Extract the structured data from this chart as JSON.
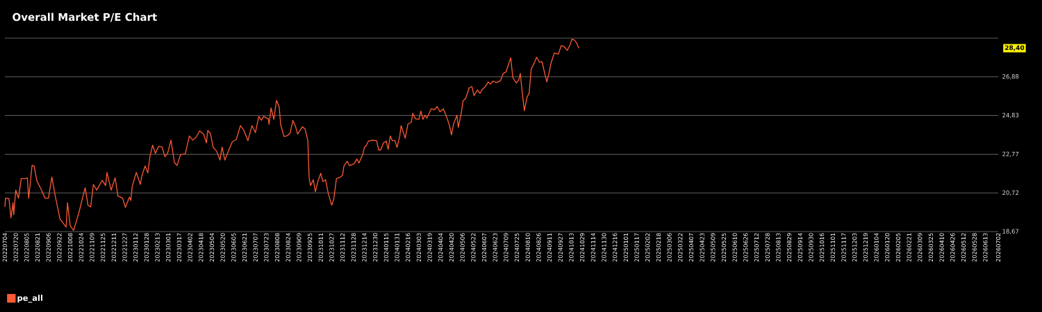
{
  "chart_data": {
    "type": "line",
    "title": "Overall Market P/E Chart",
    "x": [
      "2022-07-04",
      "2022-07-05",
      "2022-07-10",
      "2022-07-13",
      "2022-07-16",
      "2022-07-17",
      "2022-07-20",
      "2022-07-24",
      "2022-07-28",
      "2022-08-03",
      "2022-08-06",
      "2022-08-08",
      "2022-08-13",
      "2022-08-16",
      "2022-08-20",
      "2022-08-26",
      "2022-09-01",
      "2022-09-06",
      "2022-09-11",
      "2022-09-16",
      "2022-09-23",
      "2022-09-28",
      "2022-10-02",
      "2022-10-04",
      "2022-10-08",
      "2022-10-13",
      "2022-10-21",
      "2022-10-26",
      "2022-10-30",
      "2022-11-03",
      "2022-11-07",
      "2022-11-11",
      "2022-11-16",
      "2022-11-24",
      "2022-11-29",
      "2022-12-01",
      "2022-12-07",
      "2022-12-13",
      "2022-12-17",
      "2022-12-24",
      "2022-12-28",
      "2023-01-03",
      "2023-01-05",
      "2023-01-07",
      "2023-01-13",
      "2023-01-19",
      "2023-01-21",
      "2023-01-26",
      "2023-01-30",
      "2023-02-02",
      "2023-02-06",
      "2023-02-10",
      "2023-02-15",
      "2023-02-20",
      "2023-02-24",
      "2023-02-28",
      "2023-03-05",
      "2023-03-10",
      "2023-03-14",
      "2023-03-19",
      "2023-03-26",
      "2023-04-01",
      "2023-04-06",
      "2023-04-11",
      "2023-04-16",
      "2023-04-22",
      "2023-04-26",
      "2023-04-28",
      "2023-05-02",
      "2023-05-06",
      "2023-05-11",
      "2023-05-16",
      "2023-05-19",
      "2023-05-23",
      "2023-05-29",
      "2023-06-03",
      "2023-06-09",
      "2023-06-15",
      "2023-06-20",
      "2023-06-26",
      "2023-07-02",
      "2023-07-07",
      "2023-07-12",
      "2023-07-16",
      "2023-07-19",
      "2023-07-26",
      "2023-07-27",
      "2023-07-30",
      "2023-08-03",
      "2023-08-07",
      "2023-08-11",
      "2023-08-13",
      "2023-08-18",
      "2023-08-23",
      "2023-08-27",
      "2023-08-31",
      "2023-09-04",
      "2023-09-07",
      "2023-09-14",
      "2023-09-18",
      "2023-09-22",
      "2023-09-24",
      "2023-09-26",
      "2023-09-30",
      "2023-10-03",
      "2023-10-07",
      "2023-10-11",
      "2023-10-14",
      "2023-10-18",
      "2023-10-22",
      "2023-10-27",
      "2023-10-30",
      "2023-11-03",
      "2023-11-08",
      "2023-11-12",
      "2023-11-14",
      "2023-11-19",
      "2023-11-22",
      "2023-11-29",
      "2023-12-03",
      "2023-12-06",
      "2023-12-12",
      "2023-12-14",
      "2023-12-17",
      "2023-12-20",
      "2023-12-26",
      "2024-01-01",
      "2024-01-04",
      "2024-01-07",
      "2024-01-11",
      "2024-01-15",
      "2024-01-18",
      "2024-01-21",
      "2024-01-24",
      "2024-01-28",
      "2024-01-31",
      "2024-02-04",
      "2024-02-06",
      "2024-02-12",
      "2024-02-16",
      "2024-02-21",
      "2024-02-23",
      "2024-02-27",
      "2024-03-03",
      "2024-03-06",
      "2024-03-09",
      "2024-03-12",
      "2024-03-15",
      "2024-03-21",
      "2024-03-26",
      "2024-03-30",
      "2024-04-03",
      "2024-04-08",
      "2024-04-13",
      "2024-04-17",
      "2024-04-20",
      "2024-04-23",
      "2024-04-28",
      "2024-04-30",
      "2024-05-04",
      "2024-05-07",
      "2024-05-11",
      "2024-05-16",
      "2024-05-20",
      "2024-05-23",
      "2024-05-28",
      "2024-06-01",
      "2024-06-04",
      "2024-06-08",
      "2024-06-13",
      "2024-06-16",
      "2024-06-20",
      "2024-06-25",
      "2024-07-01",
      "2024-07-05",
      "2024-07-09",
      "2024-07-12",
      "2024-07-16",
      "2024-07-19",
      "2024-07-24",
      "2024-07-28",
      "2024-07-30",
      "2024-08-02",
      "2024-08-05",
      "2024-08-09",
      "2024-08-12",
      "2024-08-15",
      "2024-08-20",
      "2024-08-23",
      "2024-08-27",
      "2024-08-31",
      "2024-09-04",
      "2024-09-07",
      "2024-09-10",
      "2024-09-13",
      "2024-09-18",
      "2024-09-24",
      "2024-09-28",
      "2024-10-02",
      "2024-10-07",
      "2024-10-11",
      "2024-10-14",
      "2024-10-18",
      "2024-10-21",
      "2024-10-24"
    ],
    "series": [
      {
        "name": "pe_all",
        "color": "#ff5a36",
        "values": [
          19.98,
          20.44,
          20.42,
          19.4,
          20.2,
          19.56,
          20.87,
          20.44,
          21.48,
          21.48,
          21.52,
          20.44,
          22.19,
          22.15,
          21.36,
          20.93,
          20.44,
          20.44,
          21.56,
          20.56,
          19.34,
          19.1,
          18.91,
          20.2,
          18.98,
          18.73,
          19.71,
          20.44,
          20.99,
          20.07,
          19.98,
          21.17,
          20.87,
          21.39,
          21.11,
          21.81,
          20.87,
          21.52,
          20.56,
          20.44,
          19.95,
          20.5,
          20.32,
          21.05,
          21.81,
          21.17,
          21.6,
          22.15,
          21.78,
          22.64,
          23.25,
          22.82,
          23.19,
          23.15,
          22.64,
          22.82,
          23.52,
          22.33,
          22.17,
          22.76,
          22.79,
          23.74,
          23.52,
          23.68,
          24.01,
          23.84,
          23.37,
          24.04,
          23.86,
          23.13,
          22.94,
          22.46,
          23.15,
          22.46,
          23.0,
          23.43,
          23.56,
          24.29,
          24.04,
          23.49,
          24.29,
          23.92,
          24.78,
          24.57,
          24.78,
          24.65,
          24.35,
          25.23,
          24.62,
          25.63,
          25.27,
          24.35,
          23.71,
          23.76,
          23.89,
          24.57,
          24.23,
          23.84,
          24.23,
          24.11,
          23.49,
          21.48,
          21.11,
          21.42,
          20.78,
          21.36,
          21.76,
          21.32,
          21.42,
          20.69,
          20.07,
          20.38,
          21.48,
          21.54,
          21.66,
          22.15,
          22.4,
          22.17,
          22.27,
          22.52,
          22.3,
          22.79,
          23.13,
          23.25,
          23.47,
          23.52,
          23.49,
          23.0,
          23.0,
          23.37,
          23.47,
          23.03,
          23.74,
          23.49,
          23.49,
          23.13,
          23.74,
          24.29,
          23.62,
          24.37,
          24.47,
          24.94,
          24.65,
          24.62,
          25.06,
          24.62,
          24.84,
          24.69,
          25.18,
          25.14,
          25.3,
          25.02,
          25.18,
          24.74,
          24.29,
          23.8,
          24.37,
          24.84,
          24.2,
          24.9,
          25.6,
          25.75,
          26.3,
          26.36,
          25.88,
          26.18,
          26.0,
          26.21,
          26.33,
          26.61,
          26.49,
          26.65,
          26.57,
          26.67,
          27.06,
          27.13,
          27.46,
          27.89,
          26.85,
          26.55,
          26.73,
          27.06,
          26.0,
          25.08,
          25.81,
          26.0,
          27.28,
          27.65,
          27.92,
          27.65,
          27.68,
          27.04,
          26.61,
          27.04,
          27.59,
          28.14,
          28.08,
          28.53,
          28.49,
          28.28,
          28.56,
          28.88,
          28.81,
          28.65,
          28.4
        ]
      }
    ],
    "xlim": [
      "2022-07-04",
      "2026-07-02"
    ],
    "xticks": [
      {
        "value": "2022-07-04",
        "label": "20220704"
      },
      {
        "value": "2022-07-20",
        "label": "20220720"
      },
      {
        "value": "2022-08-05",
        "label": "20220805"
      },
      {
        "value": "2022-08-21",
        "label": "20220821"
      },
      {
        "value": "2022-09-06",
        "label": "20220906"
      },
      {
        "value": "2022-09-22",
        "label": "20220922"
      },
      {
        "value": "2022-10-08",
        "label": "20221008"
      },
      {
        "value": "2022-10-24",
        "label": "20221024"
      },
      {
        "value": "2022-11-09",
        "label": "20221109"
      },
      {
        "value": "2022-11-25",
        "label": "20221125"
      },
      {
        "value": "2022-12-11",
        "label": "20221211"
      },
      {
        "value": "2022-12-27",
        "label": "20221227"
      },
      {
        "value": "2023-01-12",
        "label": "20230112"
      },
      {
        "value": "2023-01-28",
        "label": "20230128"
      },
      {
        "value": "2023-02-13",
        "label": "20230213"
      },
      {
        "value": "2023-03-01",
        "label": "20230301"
      },
      {
        "value": "2023-03-17",
        "label": "20230317"
      },
      {
        "value": "2023-04-02",
        "label": "20230402"
      },
      {
        "value": "2023-04-18",
        "label": "20230418"
      },
      {
        "value": "2023-05-04",
        "label": "20230504"
      },
      {
        "value": "2023-05-20",
        "label": "20230520"
      },
      {
        "value": "2023-06-05",
        "label": "20230605"
      },
      {
        "value": "2023-06-21",
        "label": "20230621"
      },
      {
        "value": "2023-07-07",
        "label": "20230707"
      },
      {
        "value": "2023-07-23",
        "label": "20230723"
      },
      {
        "value": "2023-08-08",
        "label": "20230808"
      },
      {
        "value": "2023-08-24",
        "label": "20230824"
      },
      {
        "value": "2023-09-09",
        "label": "20230909"
      },
      {
        "value": "2023-09-25",
        "label": "20230925"
      },
      {
        "value": "2023-10-11",
        "label": "20231011"
      },
      {
        "value": "2023-10-27",
        "label": "20231027"
      },
      {
        "value": "2023-11-12",
        "label": "20231112"
      },
      {
        "value": "2023-11-28",
        "label": "20231128"
      },
      {
        "value": "2023-12-14",
        "label": "20231214"
      },
      {
        "value": "2023-12-30",
        "label": "20231230"
      },
      {
        "value": "2024-01-15",
        "label": "20240115"
      },
      {
        "value": "2024-01-31",
        "label": "20240131"
      },
      {
        "value": "2024-02-16",
        "label": "20240216"
      },
      {
        "value": "2024-03-03",
        "label": "20240303"
      },
      {
        "value": "2024-03-19",
        "label": "20240319"
      },
      {
        "value": "2024-04-04",
        "label": "20240404"
      },
      {
        "value": "2024-04-20",
        "label": "20240420"
      },
      {
        "value": "2024-05-06",
        "label": "20240506"
      },
      {
        "value": "2024-05-22",
        "label": "20240522"
      },
      {
        "value": "2024-06-07",
        "label": "20240607"
      },
      {
        "value": "2024-06-23",
        "label": "20240623"
      },
      {
        "value": "2024-07-09",
        "label": "20240709"
      },
      {
        "value": "2024-07-25",
        "label": "20240725"
      },
      {
        "value": "2024-08-10",
        "label": "20240810"
      },
      {
        "value": "2024-08-26",
        "label": "20240826"
      },
      {
        "value": "2024-09-11",
        "label": "20240911"
      },
      {
        "value": "2024-09-27",
        "label": "20240927"
      },
      {
        "value": "2024-10-13",
        "label": "20241013"
      },
      {
        "value": "2024-10-29",
        "label": "20241029"
      },
      {
        "value": "2024-11-14",
        "label": "20241114"
      },
      {
        "value": "2024-11-30",
        "label": "20241130"
      },
      {
        "value": "2024-12-16",
        "label": "20241216"
      },
      {
        "value": "2025-01-01",
        "label": "20250101"
      },
      {
        "value": "2025-01-17",
        "label": "20250117"
      },
      {
        "value": "2025-02-02",
        "label": "20250202"
      },
      {
        "value": "2025-02-18",
        "label": "20250218"
      },
      {
        "value": "2025-03-06",
        "label": "20250306"
      },
      {
        "value": "2025-03-22",
        "label": "20250322"
      },
      {
        "value": "2025-04-07",
        "label": "20250407"
      },
      {
        "value": "2025-04-23",
        "label": "20250423"
      },
      {
        "value": "2025-05-09",
        "label": "20250509"
      },
      {
        "value": "2025-05-25",
        "label": "20250525"
      },
      {
        "value": "2025-06-10",
        "label": "20250610"
      },
      {
        "value": "2025-06-26",
        "label": "20250626"
      },
      {
        "value": "2025-07-12",
        "label": "20250712"
      },
      {
        "value": "2025-07-28",
        "label": "20250728"
      },
      {
        "value": "2025-08-13",
        "label": "20250813"
      },
      {
        "value": "2025-08-29",
        "label": "20250829"
      },
      {
        "value": "2025-09-14",
        "label": "20250914"
      },
      {
        "value": "2025-09-30",
        "label": "20250930"
      },
      {
        "value": "2025-10-16",
        "label": "20251016"
      },
      {
        "value": "2025-11-01",
        "label": "20251101"
      },
      {
        "value": "2025-11-17",
        "label": "20251117"
      },
      {
        "value": "2025-12-03",
        "label": "20251203"
      },
      {
        "value": "2025-12-19",
        "label": "20251219"
      },
      {
        "value": "2026-01-04",
        "label": "20260104"
      },
      {
        "value": "2026-01-20",
        "label": "20260120"
      },
      {
        "value": "2026-02-05",
        "label": "20260205"
      },
      {
        "value": "2026-02-21",
        "label": "20260221"
      },
      {
        "value": "2026-03-09",
        "label": "20260309"
      },
      {
        "value": "2026-03-25",
        "label": "20260325"
      },
      {
        "value": "2026-04-10",
        "label": "20260410"
      },
      {
        "value": "2026-04-26",
        "label": "20260426"
      },
      {
        "value": "2026-05-12",
        "label": "20260512"
      },
      {
        "value": "2026-05-28",
        "label": "20260528"
      },
      {
        "value": "2026-06-13",
        "label": "20260613"
      },
      {
        "value": "2026-07-02",
        "label": "20260702"
      }
    ],
    "ylim": [
      18.67,
      28.93
    ],
    "yticks": [
      {
        "value": 18.67,
        "label": "18,67"
      },
      {
        "value": 20.72,
        "label": "20,72"
      },
      {
        "value": 22.77,
        "label": "22,77"
      },
      {
        "value": 24.83,
        "label": "24,83"
      },
      {
        "value": 26.88,
        "label": "26,88"
      },
      {
        "value": 28.93,
        "label": null
      }
    ],
    "grid": "y",
    "legend": "bottom left",
    "annotations": [
      "28,40"
    ]
  }
}
